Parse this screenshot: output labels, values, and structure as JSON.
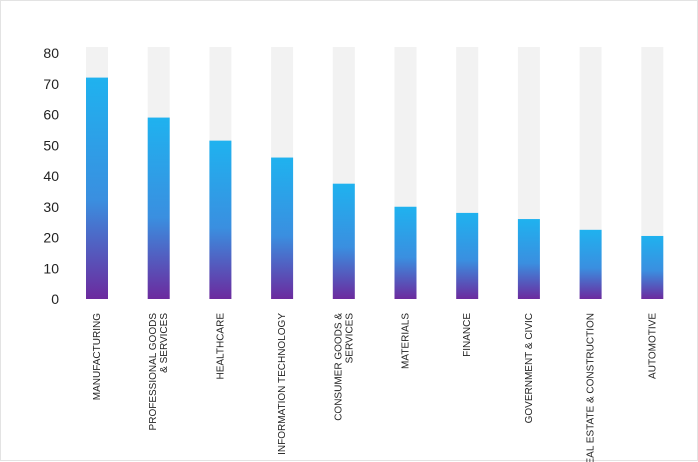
{
  "chart_data": {
    "type": "bar",
    "categories": [
      "MANUFACTURING",
      "PROFESSIONAL GOODS\n& SERVICES",
      "HEALTHCARE",
      "INFORMATION TECHNOLOGY",
      "CONSUMER GOODS &\nSERVICES",
      "MATERIALS",
      "FINANCE",
      "GOVERNMENT & CIVIC",
      "REAL ESTATE & CONSTRUCTION",
      "AUTOMOTIVE"
    ],
    "values": [
      72,
      59,
      51.5,
      46,
      37.5,
      30,
      28,
      26,
      22.5,
      20.5
    ],
    "ylim": [
      0,
      80
    ],
    "yticks": [
      0,
      10,
      20,
      30,
      40,
      50,
      60,
      70,
      80
    ],
    "title": "",
    "xlabel": "",
    "ylabel": "",
    "grid": false,
    "legend": "none",
    "colors": {
      "track": "#f2f2f2",
      "bar_top": "#1fb2ef",
      "bar_bottom": "#6c2a9e",
      "text": "#222222",
      "frame": "#e3e3e3"
    }
  }
}
